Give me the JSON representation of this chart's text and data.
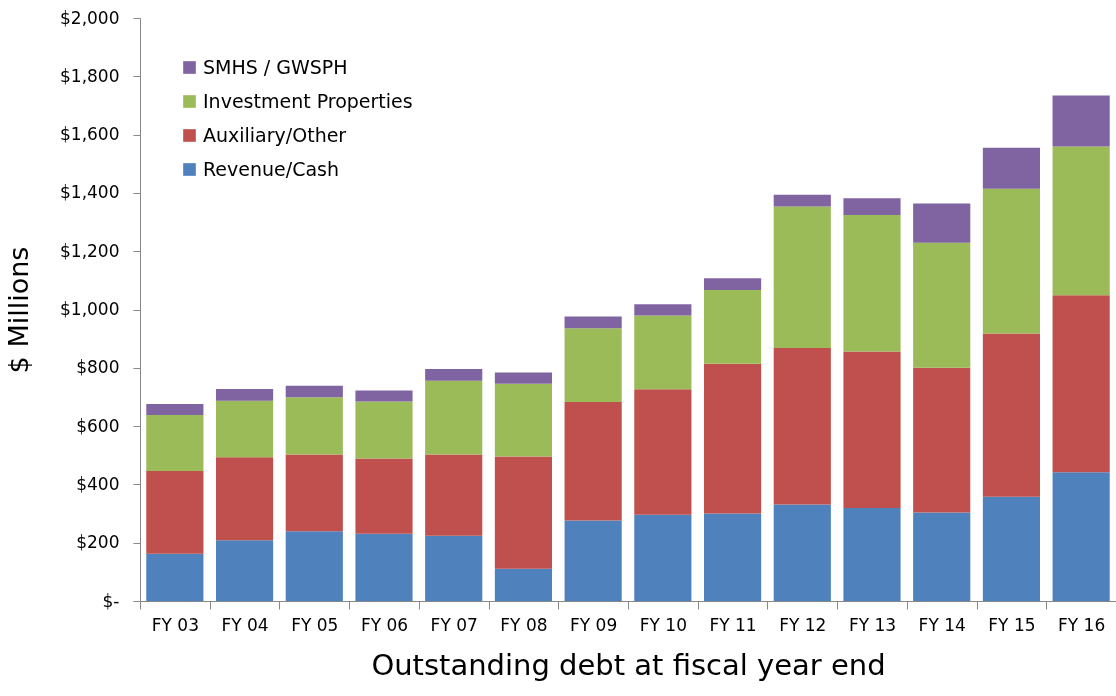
{
  "chart_data": {
    "type": "bar",
    "stacked": true,
    "xlabel": "Outstanding debt at fiscal year end",
    "ylabel": "$ Millions",
    "categories": [
      "FY 03",
      "FY 04",
      "FY 05",
      "FY 06",
      "FY 07",
      "FY 08",
      "FY 09",
      "FY 10",
      "FY 11",
      "FY 12",
      "FY 13",
      "FY 14",
      "FY 15",
      "FY 16"
    ],
    "series": [
      {
        "name": "Revenue/Cash",
        "color": "#4f81bd",
        "values": [
          162,
          208,
          239,
          231,
          224,
          111,
          276,
          296,
          300,
          331,
          319,
          304,
          358,
          442
        ]
      },
      {
        "name": "Auxiliary/Other",
        "color": "#c0504d",
        "values": [
          284,
          285,
          264,
          258,
          279,
          385,
          407,
          430,
          514,
          537,
          537,
          496,
          560,
          607
        ]
      },
      {
        "name": "Investment Properties",
        "color": "#9bbb59",
        "values": [
          192,
          194,
          196,
          195,
          253,
          249,
          253,
          253,
          253,
          485,
          468,
          429,
          496,
          510
        ]
      },
      {
        "name": "SMHS / GWSPH",
        "color": "#8064a2",
        "values": [
          38,
          40,
          39,
          38,
          40,
          39,
          40,
          39,
          40,
          41,
          58,
          135,
          141,
          175
        ]
      }
    ],
    "ylim": [
      0,
      2000
    ],
    "yticks": [
      {
        "value": 0,
        "label": "$-"
      },
      {
        "value": 200,
        "label": "$200"
      },
      {
        "value": 400,
        "label": "$400"
      },
      {
        "value": 600,
        "label": "$600"
      },
      {
        "value": 800,
        "label": "$800"
      },
      {
        "value": 1000,
        "label": "$1,000"
      },
      {
        "value": 1200,
        "label": "$1,200"
      },
      {
        "value": 1400,
        "label": "$1,400"
      },
      {
        "value": 1600,
        "label": "$1,600"
      },
      {
        "value": 1800,
        "label": "$1,800"
      },
      {
        "value": 2000,
        "label": "$2,000"
      }
    ],
    "grid": false,
    "legend": "top left"
  }
}
